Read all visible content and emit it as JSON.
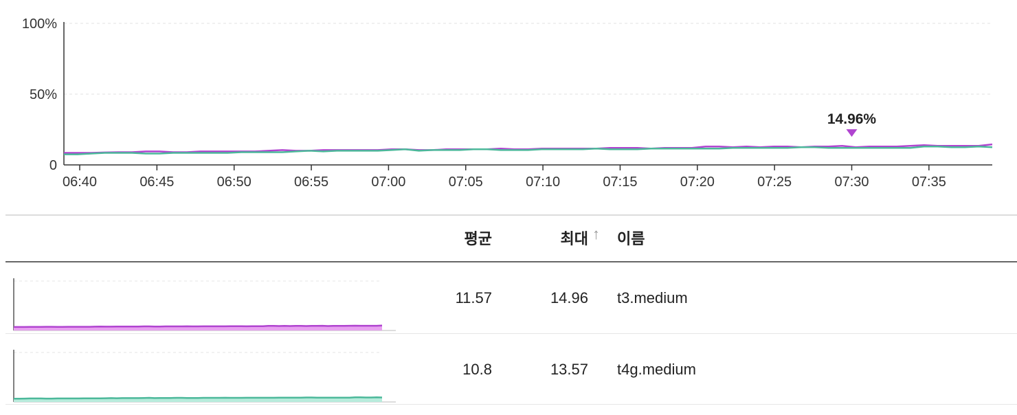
{
  "chart_data": {
    "type": "line",
    "ylim": [
      0,
      100
    ],
    "y_ticks": [
      "0",
      "50%",
      "100%"
    ],
    "x_ticks": [
      "06:40",
      "06:45",
      "06:50",
      "06:55",
      "07:00",
      "07:05",
      "07:10",
      "07:15",
      "07:20",
      "07:25",
      "07:30",
      "07:35"
    ],
    "x_range_minutes": [
      0,
      59
    ],
    "grid": "horizontal dashed",
    "series": [
      {
        "name": "t3.medium",
        "color": "#b044d0",
        "fill": "#e8a0f0",
        "values": [
          8.5,
          8.5,
          8.5,
          8.8,
          9,
          9,
          9.5,
          9.5,
          9,
          9,
          9.5,
          9.5,
          9.5,
          9.5,
          9.5,
          10,
          10.5,
          10,
          10,
          10.5,
          10.5,
          10.5,
          10.5,
          10.5,
          11,
          11,
          10.5,
          10.5,
          11,
          11,
          11,
          11,
          11.5,
          11,
          11,
          11.5,
          11.5,
          11.5,
          11.5,
          11.5,
          12,
          12,
          12,
          11.5,
          12,
          12,
          12,
          13,
          13,
          12.5,
          13,
          12.5,
          13,
          13,
          12.5,
          13,
          13,
          13.5,
          12.5,
          13,
          13,
          13,
          13.5,
          14,
          13.5,
          13.5,
          13.5,
          13.5,
          14.5
        ]
      },
      {
        "name": "t4g.medium",
        "color": "#4cb89a",
        "fill": "#b8ecdc",
        "values": [
          7.5,
          7.5,
          8,
          8.5,
          8.5,
          8.5,
          8,
          8,
          8.5,
          8.5,
          8.5,
          8.5,
          8.5,
          9,
          9,
          9,
          9,
          9.5,
          10,
          9.5,
          10,
          10,
          10,
          10,
          10.5,
          11,
          10,
          10.5,
          10.5,
          10.5,
          11,
          11,
          10.5,
          10.5,
          10.5,
          11,
          11,
          11,
          11,
          11.5,
          11,
          11,
          11,
          11.5,
          11.5,
          11.5,
          11.5,
          11.5,
          11.5,
          12,
          12,
          12,
          12,
          12,
          12.5,
          12.5,
          12,
          12,
          12,
          12,
          12,
          12,
          12,
          13,
          13,
          12.5,
          12.5,
          13,
          12.5
        ]
      }
    ],
    "annotation": {
      "label": "14.96%",
      "x_minute": 50,
      "value": 14.96
    }
  },
  "table": {
    "headers": {
      "avg": "평균",
      "max": "최대",
      "name": "이름",
      "sort_icon": "↑"
    },
    "rows": [
      {
        "avg": "11.57",
        "max": "14.96",
        "name": "t3.medium"
      },
      {
        "avg": "10.8",
        "max": "13.57",
        "name": "t4g.medium"
      }
    ]
  }
}
